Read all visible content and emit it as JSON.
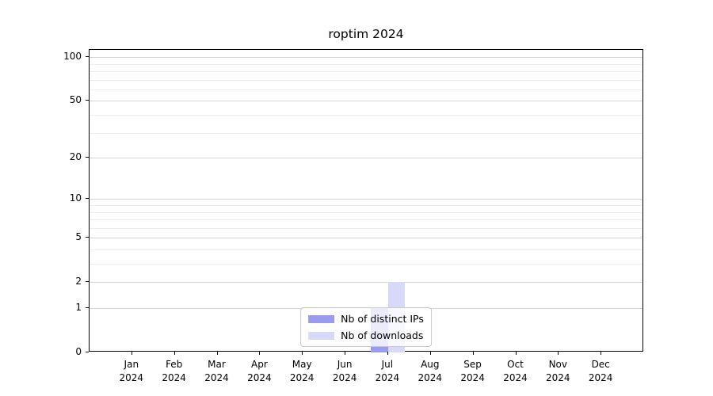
{
  "chart_data": {
    "type": "bar",
    "title": "roptim 2024",
    "categories": [
      "Jan 2024",
      "Feb 2024",
      "Mar 2024",
      "Apr 2024",
      "May 2024",
      "Jun 2024",
      "Jul 2024",
      "Aug 2024",
      "Sep 2024",
      "Oct 2024",
      "Nov 2024",
      "Dec 2024"
    ],
    "series": [
      {
        "name": "Nb of distinct IPs",
        "color": "#9a9aef",
        "values": [
          0,
          0,
          0,
          0,
          0,
          0,
          1,
          0,
          0,
          0,
          0,
          0
        ]
      },
      {
        "name": "Nb of downloads",
        "color": "#d8d8f9",
        "values": [
          0,
          0,
          0,
          0,
          0,
          0,
          2,
          0,
          0,
          0,
          0,
          0
        ]
      }
    ],
    "xlabel": "",
    "ylabel": "",
    "y_scale": "log10(x+1)",
    "y_ticks": [
      0,
      1,
      2,
      5,
      10,
      20,
      50,
      100
    ],
    "y_minor_grid": [
      3,
      4,
      6,
      7,
      8,
      9,
      30,
      40,
      60,
      70,
      80,
      90
    ],
    "ylim": [
      0,
      112
    ],
    "grid": true,
    "legend_position": "lower center"
  },
  "colors": {
    "spine": "#000000",
    "major_grid": "#d5d5d5",
    "minor_grid": "#ededed",
    "legend_border": "#c9c9c9",
    "legend_background": "rgba(255,255,255,0.8)",
    "text": "#000000"
  }
}
